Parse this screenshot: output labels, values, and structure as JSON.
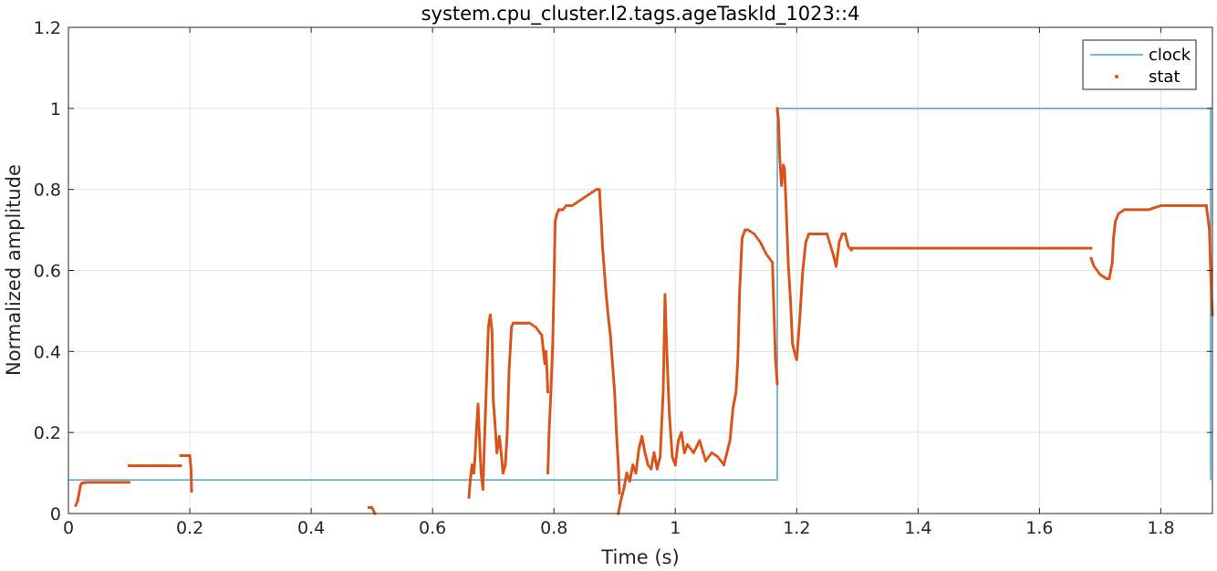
{
  "chart_data": {
    "type": "line",
    "title": "system.cpu_cluster.l2.tags.ageTaskId_1023::4",
    "xlabel": "Time (s)",
    "ylabel": "Normalized amplitude",
    "xlim": [
      0,
      1.885
    ],
    "ylim": [
      0,
      1.2
    ],
    "xticks": [
      "0",
      "0.2",
      "0.4",
      "0.6",
      "0.8",
      "1",
      "1.2",
      "1.4",
      "1.6",
      "1.8"
    ],
    "xtick_values": [
      0,
      0.2,
      0.4,
      0.6,
      0.8,
      1.0,
      1.2,
      1.4,
      1.6,
      1.8
    ],
    "yticks": [
      "0",
      "0.2",
      "0.4",
      "0.6",
      "0.8",
      "1",
      "1.2"
    ],
    "ytick_values": [
      0,
      0.2,
      0.4,
      0.6,
      0.8,
      1.0,
      1.2
    ],
    "grid": true,
    "legend_position": "top-right",
    "series": [
      {
        "name": "clock",
        "style": "line",
        "color": "#4fa3c7",
        "x": [
          0,
          1.168,
          1.168,
          1.882,
          1.882
        ],
        "y": [
          0.083,
          0.083,
          1.0,
          1.0,
          0.083
        ]
      },
      {
        "name": "stat",
        "style": "dots",
        "color": "#d95319",
        "segments": [
          {
            "x": [
              0.012,
              0.015,
              0.02
            ],
            "y": [
              0.02,
              0.03,
              0.07
            ]
          },
          {
            "x": [
              0.022,
              0.03,
              0.05,
              0.07,
              0.09,
              0.1
            ],
            "y": [
              0.075,
              0.077,
              0.077,
              0.077,
              0.077,
              0.077
            ]
          },
          {
            "x": [
              0.1,
              0.12,
              0.14,
              0.16,
              0.18,
              0.185
            ],
            "y": [
              0.118,
              0.118,
              0.118,
              0.118,
              0.118,
              0.118
            ]
          },
          {
            "x": [
              0.185,
              0.19,
              0.2,
              0.202,
              0.203
            ],
            "y": [
              0.143,
              0.143,
              0.143,
              0.11,
              0.055
            ]
          },
          {
            "x": [
              0.495,
              0.5,
              0.505
            ],
            "y": [
              0.015,
              0.015,
              0.0
            ]
          },
          {
            "x": [
              0.66,
              0.662,
              0.665,
              0.668,
              0.67,
              0.672,
              0.675,
              0.678,
              0.68,
              0.683,
              0.686,
              0.689,
              0.692,
              0.695,
              0.698,
              0.7,
              0.703,
              0.706,
              0.71,
              0.713,
              0.716,
              0.72,
              0.723,
              0.726,
              0.73,
              0.733,
              0.736,
              0.74,
              0.745,
              0.75,
              0.76,
              0.77,
              0.78,
              0.782,
              0.785,
              0.787,
              0.79
            ],
            "y": [
              0.04,
              0.08,
              0.12,
              0.1,
              0.14,
              0.2,
              0.27,
              0.16,
              0.1,
              0.06,
              0.2,
              0.33,
              0.46,
              0.49,
              0.45,
              0.28,
              0.22,
              0.15,
              0.19,
              0.15,
              0.1,
              0.12,
              0.2,
              0.35,
              0.46,
              0.47,
              0.47,
              0.47,
              0.47,
              0.47,
              0.47,
              0.46,
              0.44,
              0.41,
              0.37,
              0.4,
              0.3
            ]
          },
          {
            "x": [
              0.79,
              0.792,
              0.795,
              0.798,
              0.8,
              0.802,
              0.805,
              0.808,
              0.81,
              0.815,
              0.82,
              0.83,
              0.84,
              0.85,
              0.86,
              0.87,
              0.875,
              0.876,
              0.878,
              0.88,
              0.883,
              0.886,
              0.89,
              0.893,
              0.896,
              0.9,
              0.903,
              0.906,
              0.908
            ],
            "y": [
              0.1,
              0.2,
              0.3,
              0.42,
              0.56,
              0.72,
              0.74,
              0.75,
              0.75,
              0.75,
              0.76,
              0.76,
              0.77,
              0.78,
              0.79,
              0.8,
              0.8,
              0.77,
              0.72,
              0.66,
              0.6,
              0.54,
              0.48,
              0.44,
              0.38,
              0.3,
              0.2,
              0.12,
              0.05
            ]
          },
          {
            "x": [
              0.906,
              0.91,
              0.915,
              0.92,
              0.925,
              0.93,
              0.935,
              0.94,
              0.945,
              0.95,
              0.955,
              0.96,
              0.965,
              0.97,
              0.975,
              0.98,
              0.983,
              0.986,
              0.99,
              0.995,
              1.0,
              1.005,
              1.01,
              1.015,
              1.02,
              1.03,
              1.04,
              1.05,
              1.06,
              1.07,
              1.08,
              1.09,
              1.095,
              1.1,
              1.103,
              1.106,
              1.11,
              1.115,
              1.12,
              1.13,
              1.14,
              1.15,
              1.16,
              1.165,
              1.168
            ],
            "y": [
              0.0,
              0.03,
              0.06,
              0.1,
              0.08,
              0.12,
              0.1,
              0.16,
              0.19,
              0.15,
              0.12,
              0.11,
              0.15,
              0.11,
              0.14,
              0.3,
              0.54,
              0.4,
              0.25,
              0.14,
              0.12,
              0.18,
              0.2,
              0.15,
              0.17,
              0.15,
              0.18,
              0.13,
              0.15,
              0.14,
              0.12,
              0.18,
              0.26,
              0.3,
              0.38,
              0.55,
              0.68,
              0.7,
              0.7,
              0.69,
              0.67,
              0.64,
              0.62,
              0.38,
              0.32
            ]
          },
          {
            "x": [
              1.168,
              1.17,
              1.172,
              1.175,
              1.178,
              1.18,
              1.183,
              1.186,
              1.19,
              1.193,
              1.196,
              1.2,
              1.205,
              1.21,
              1.215,
              1.22,
              1.23,
              1.24,
              1.25,
              1.26,
              1.265,
              1.27,
              1.275,
              1.28,
              1.285,
              1.29
            ],
            "y": [
              1.0,
              0.97,
              0.88,
              0.81,
              0.86,
              0.85,
              0.74,
              0.62,
              0.52,
              0.42,
              0.4,
              0.38,
              0.48,
              0.6,
              0.67,
              0.69,
              0.69,
              0.69,
              0.69,
              0.64,
              0.61,
              0.67,
              0.69,
              0.69,
              0.66,
              0.65
            ]
          },
          {
            "x": [
              1.29,
              1.35,
              1.4,
              1.45,
              1.5,
              1.55,
              1.6,
              1.65,
              1.685
            ],
            "y": [
              0.655,
              0.655,
              0.655,
              0.655,
              0.655,
              0.655,
              0.655,
              0.655,
              0.655
            ]
          },
          {
            "x": [
              1.685,
              1.69,
              1.695,
              1.7,
              1.705,
              1.71,
              1.715,
              1.72,
              1.722,
              1.725,
              1.73,
              1.74,
              1.76,
              1.78,
              1.8,
              1.82,
              1.84,
              1.86,
              1.875,
              1.88,
              1.882,
              1.884,
              1.885
            ],
            "y": [
              0.63,
              0.61,
              0.6,
              0.59,
              0.585,
              0.58,
              0.58,
              0.62,
              0.68,
              0.72,
              0.74,
              0.75,
              0.75,
              0.75,
              0.76,
              0.76,
              0.76,
              0.76,
              0.76,
              0.7,
              0.6,
              0.52,
              0.49
            ]
          }
        ]
      }
    ]
  }
}
